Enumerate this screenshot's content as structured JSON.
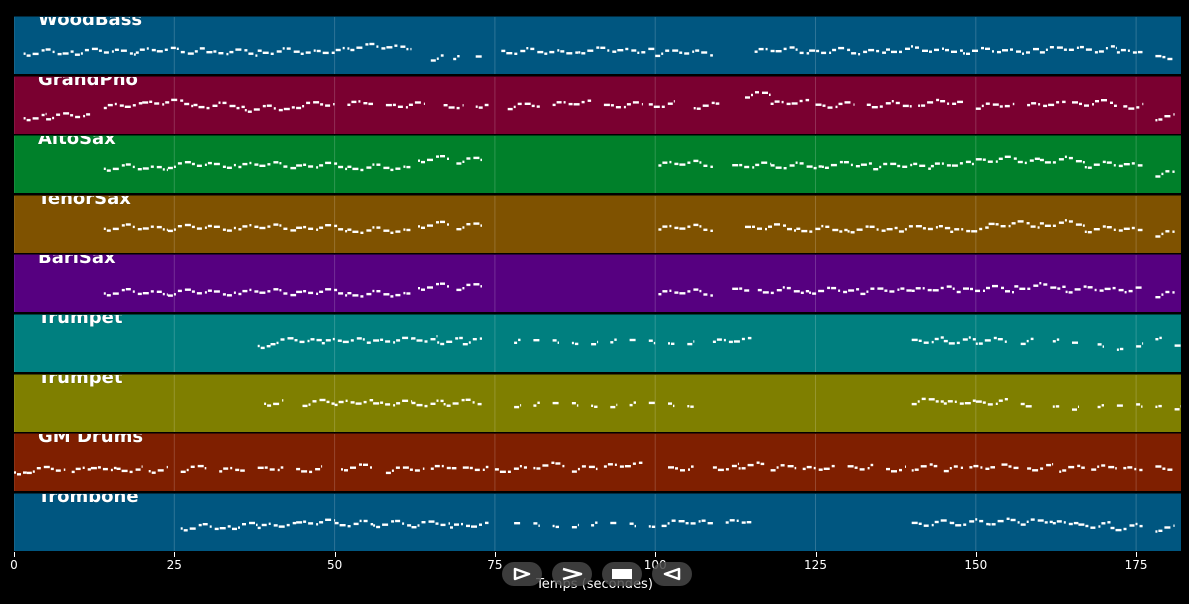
{
  "chart_data": {
    "type": "piano-roll",
    "xlabel": "Temps (secondes)",
    "xlim": [
      0,
      182
    ],
    "x_ticks": [
      0,
      25,
      50,
      75,
      100,
      125,
      150,
      175
    ],
    "grid": true,
    "tracks": [
      {
        "name": "WoodBass",
        "color": "#005680",
        "segments": [
          [
            1.5,
            9.5
          ],
          [
            9.5,
            19
          ],
          [
            19,
            30
          ],
          [
            30,
            38
          ],
          [
            38,
            52
          ],
          [
            52,
            62
          ],
          [
            65,
            67
          ],
          [
            68.5,
            69.5
          ],
          [
            72,
            73
          ],
          [
            76,
            88
          ],
          [
            88,
            100
          ],
          [
            100,
            109
          ],
          [
            115.5,
            124
          ],
          [
            124,
            136
          ],
          [
            136,
            148
          ],
          [
            148,
            160
          ],
          [
            160,
            172
          ],
          [
            172,
            176
          ],
          [
            178,
            181
          ]
        ],
        "pitch": [
          0.62,
          0.6,
          0.58,
          0.62,
          0.6,
          0.52,
          0.7,
          0.7,
          0.7,
          0.6,
          0.58,
          0.62,
          0.58,
          0.6,
          0.57,
          0.59,
          0.56,
          0.6,
          0.7
        ]
      },
      {
        "name": "GrandPno",
        "color": "#7a0030",
        "segments": [
          [
            1.5,
            5
          ],
          [
            5,
            12
          ],
          [
            14,
            20
          ],
          [
            20,
            28
          ],
          [
            28,
            36
          ],
          [
            36,
            44
          ],
          [
            44,
            50
          ],
          [
            52,
            56
          ],
          [
            58,
            64
          ],
          [
            67,
            70
          ],
          [
            72,
            74
          ],
          [
            77,
            82
          ],
          [
            84,
            90
          ],
          [
            92,
            98
          ],
          [
            99,
            103
          ],
          [
            106,
            110
          ],
          [
            114,
            118
          ],
          [
            118,
            124
          ],
          [
            125,
            131
          ],
          [
            133,
            140
          ],
          [
            141,
            148
          ],
          [
            150,
            156
          ],
          [
            158,
            164
          ],
          [
            165,
            172
          ],
          [
            173,
            176
          ],
          [
            178,
            181
          ]
        ],
        "pitch": [
          0.7,
          0.68,
          0.5,
          0.45,
          0.5,
          0.55,
          0.48,
          0.45,
          0.5,
          0.5,
          0.48,
          0.5,
          0.46,
          0.5,
          0.48,
          0.5,
          0.3,
          0.45,
          0.5,
          0.48,
          0.45,
          0.5,
          0.48,
          0.46,
          0.5,
          0.7
        ]
      },
      {
        "name": "AltoSax",
        "color": "#00802a",
        "segments": [
          [
            14,
            24
          ],
          [
            24,
            35
          ],
          [
            35,
            44
          ],
          [
            44,
            52
          ],
          [
            52,
            62
          ],
          [
            63,
            68
          ],
          [
            69,
            73
          ],
          [
            100.5,
            109
          ],
          [
            112,
            118
          ],
          [
            118,
            126
          ],
          [
            126,
            134
          ],
          [
            134,
            143
          ],
          [
            143,
            150
          ],
          [
            150,
            160
          ],
          [
            160,
            167
          ],
          [
            167,
            176
          ],
          [
            178,
            181
          ]
        ],
        "pitch": [
          0.55,
          0.5,
          0.5,
          0.52,
          0.55,
          0.4,
          0.42,
          0.48,
          0.52,
          0.52,
          0.5,
          0.52,
          0.5,
          0.42,
          0.42,
          0.5,
          0.65
        ]
      },
      {
        "name": "TenorSax",
        "color": "#7f5200",
        "segments": [
          [
            14,
            24
          ],
          [
            24,
            35
          ],
          [
            35,
            44
          ],
          [
            44,
            52
          ],
          [
            52,
            62
          ],
          [
            63,
            68
          ],
          [
            69,
            73
          ],
          [
            100.5,
            109
          ],
          [
            114,
            122
          ],
          [
            122,
            130
          ],
          [
            130,
            138
          ],
          [
            138,
            146
          ],
          [
            146,
            152
          ],
          [
            152,
            160
          ],
          [
            160,
            167
          ],
          [
            167,
            176
          ],
          [
            178,
            181
          ]
        ],
        "pitch": [
          0.55,
          0.55,
          0.54,
          0.56,
          0.6,
          0.5,
          0.52,
          0.55,
          0.55,
          0.58,
          0.58,
          0.56,
          0.6,
          0.5,
          0.48,
          0.58,
          0.65
        ]
      },
      {
        "name": "BariSax",
        "color": "#560080",
        "segments": [
          [
            14,
            24
          ],
          [
            24,
            35
          ],
          [
            35,
            44
          ],
          [
            44,
            52
          ],
          [
            52,
            62
          ],
          [
            63,
            68
          ],
          [
            69,
            73
          ],
          [
            100.5,
            109
          ],
          [
            112,
            115
          ],
          [
            116,
            124
          ],
          [
            124,
            132
          ],
          [
            132,
            140
          ],
          [
            140,
            148
          ],
          [
            148,
            156
          ],
          [
            156,
            164
          ],
          [
            164,
            176
          ],
          [
            178,
            181
          ]
        ],
        "pitch": [
          0.65,
          0.65,
          0.64,
          0.65,
          0.68,
          0.55,
          0.55,
          0.65,
          0.6,
          0.62,
          0.62,
          0.62,
          0.6,
          0.6,
          0.55,
          0.6,
          0.68
        ]
      },
      {
        "name": "Trumpet",
        "color": "#007f7f",
        "segments": [
          [
            38,
            40
          ],
          [
            40,
            48
          ],
          [
            48,
            56
          ],
          [
            56,
            62
          ],
          [
            62,
            66
          ],
          [
            66,
            70
          ],
          [
            70,
            73
          ],
          [
            78,
            79
          ],
          [
            81,
            82
          ],
          [
            84,
            85
          ],
          [
            87,
            88
          ],
          [
            90,
            91
          ],
          [
            93,
            94
          ],
          [
            96,
            97
          ],
          [
            99,
            100
          ],
          [
            102,
            103
          ],
          [
            105,
            106
          ],
          [
            109,
            115
          ],
          [
            140,
            145
          ],
          [
            145,
            150
          ],
          [
            150,
            155
          ],
          [
            157,
            159
          ],
          [
            162,
            163
          ],
          [
            165,
            166
          ],
          [
            169,
            170
          ],
          [
            172,
            173
          ],
          [
            175,
            176
          ],
          [
            178,
            179
          ],
          [
            181,
            182
          ]
        ],
        "pitch": [
          0.52,
          0.45,
          0.45,
          0.45,
          0.42,
          0.45,
          0.45,
          0.45,
          0.45,
          0.45,
          0.45,
          0.45,
          0.45,
          0.45,
          0.45,
          0.45,
          0.45,
          0.45,
          0.45,
          0.45,
          0.45,
          0.45,
          0.45,
          0.5,
          0.5,
          0.55,
          0.5,
          0.42,
          0.55
        ]
      },
      {
        "name": "Trumpet",
        "color": "#7f7f00",
        "segments": [
          [
            39,
            42
          ],
          [
            45,
            50
          ],
          [
            50,
            56
          ],
          [
            56,
            62
          ],
          [
            62,
            67
          ],
          [
            67,
            73
          ],
          [
            78,
            79
          ],
          [
            81,
            82
          ],
          [
            84,
            85
          ],
          [
            87,
            88
          ],
          [
            90,
            91
          ],
          [
            93,
            94
          ],
          [
            96,
            97
          ],
          [
            99,
            100
          ],
          [
            102,
            103
          ],
          [
            105,
            106
          ],
          [
            140,
            145
          ],
          [
            145,
            150
          ],
          [
            150,
            155
          ],
          [
            157,
            159
          ],
          [
            162,
            163
          ],
          [
            165,
            166
          ],
          [
            169,
            170
          ],
          [
            172,
            173
          ],
          [
            175,
            176
          ],
          [
            178,
            179
          ],
          [
            181,
            182
          ]
        ],
        "pitch": [
          0.48,
          0.48,
          0.48,
          0.5,
          0.5,
          0.48,
          0.5,
          0.5,
          0.5,
          0.5,
          0.5,
          0.5,
          0.5,
          0.5,
          0.5,
          0.5,
          0.45,
          0.48,
          0.48,
          0.5,
          0.5,
          0.55,
          0.55,
          0.55,
          0.5,
          0.5,
          0.55
        ]
      },
      {
        "name": "GM Drums",
        "color": "#7f1f00",
        "segments": [
          [
            0,
            2
          ],
          [
            2,
            8
          ],
          [
            9,
            12
          ],
          [
            12,
            16
          ],
          [
            16,
            20
          ],
          [
            21,
            24
          ],
          [
            26,
            30
          ],
          [
            32,
            36
          ],
          [
            38,
            42
          ],
          [
            44,
            48
          ],
          [
            51,
            56
          ],
          [
            58,
            64
          ],
          [
            65,
            69
          ],
          [
            70,
            74
          ],
          [
            75,
            80
          ],
          [
            81,
            86
          ],
          [
            87,
            91
          ],
          [
            92,
            98
          ],
          [
            102,
            106
          ],
          [
            109,
            113
          ],
          [
            113,
            117
          ],
          [
            118,
            122
          ],
          [
            123,
            128
          ],
          [
            130,
            134
          ],
          [
            136,
            139
          ],
          [
            140,
            144
          ],
          [
            145,
            148
          ],
          [
            149,
            153
          ],
          [
            154,
            157
          ],
          [
            158,
            162
          ],
          [
            163,
            167
          ],
          [
            168,
            172
          ],
          [
            173,
            176
          ],
          [
            178,
            181
          ]
        ],
        "pitch": [
          0.65,
          0.62,
          0.62,
          0.6,
          0.62,
          0.62,
          0.6,
          0.62,
          0.6,
          0.62,
          0.58,
          0.62,
          0.58,
          0.6,
          0.62,
          0.55,
          0.6,
          0.55,
          0.6,
          0.58,
          0.55,
          0.58,
          0.6,
          0.58,
          0.6,
          0.58,
          0.6,
          0.58,
          0.55,
          0.58,
          0.6,
          0.58,
          0.6,
          0.58
        ]
      },
      {
        "name": "Trombone",
        "color": "#005680",
        "segments": [
          [
            26,
            34
          ],
          [
            34,
            38
          ],
          [
            38,
            44
          ],
          [
            44,
            50
          ],
          [
            50,
            56
          ],
          [
            56,
            62
          ],
          [
            62,
            68
          ],
          [
            68,
            74
          ],
          [
            78,
            79
          ],
          [
            81,
            82
          ],
          [
            84,
            85
          ],
          [
            87,
            88
          ],
          [
            90,
            91
          ],
          [
            93,
            94
          ],
          [
            96,
            97
          ],
          [
            99,
            100
          ],
          [
            101,
            109
          ],
          [
            111,
            115
          ],
          [
            140,
            146
          ],
          [
            146,
            152
          ],
          [
            152,
            157
          ],
          [
            157,
            162
          ],
          [
            162,
            166
          ],
          [
            166,
            171
          ],
          [
            171,
            176
          ],
          [
            178,
            181
          ]
        ],
        "pitch": [
          0.58,
          0.55,
          0.55,
          0.5,
          0.52,
          0.52,
          0.52,
          0.55,
          0.52,
          0.52,
          0.52,
          0.52,
          0.52,
          0.52,
          0.52,
          0.52,
          0.5,
          0.48,
          0.52,
          0.5,
          0.48,
          0.48,
          0.5,
          0.55,
          0.58,
          0.6
        ]
      }
    ]
  },
  "transport": {
    "buttons": [
      {
        "name": "play-button",
        "icon": "play-icon"
      },
      {
        "name": "fast-forward-button",
        "icon": "fast-forward-icon"
      },
      {
        "name": "stop-button",
        "icon": "stop-icon"
      },
      {
        "name": "rewind-button",
        "icon": "rewind-icon"
      }
    ]
  }
}
